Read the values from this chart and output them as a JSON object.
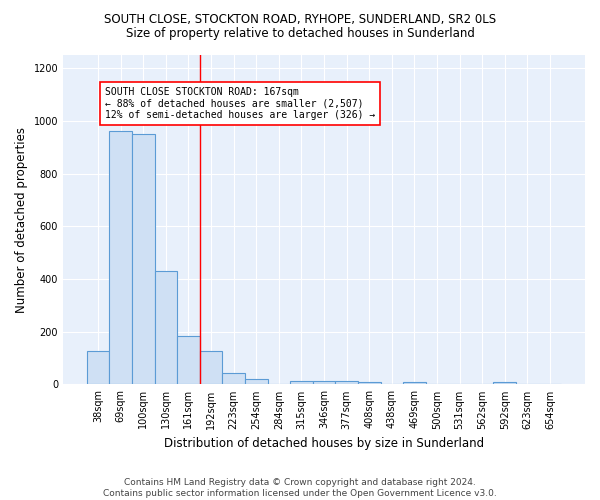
{
  "title": "SOUTH CLOSE, STOCKTON ROAD, RYHOPE, SUNDERLAND, SR2 0LS",
  "subtitle": "Size of property relative to detached houses in Sunderland",
  "xlabel": "Distribution of detached houses by size in Sunderland",
  "ylabel": "Number of detached properties",
  "bar_color": "#cfe0f4",
  "bar_edge_color": "#5b9bd5",
  "background_color": "#e8f0fb",
  "categories": [
    "38sqm",
    "69sqm",
    "100sqm",
    "130sqm",
    "161sqm",
    "192sqm",
    "223sqm",
    "254sqm",
    "284sqm",
    "315sqm",
    "346sqm",
    "377sqm",
    "408sqm",
    "438sqm",
    "469sqm",
    "500sqm",
    "531sqm",
    "562sqm",
    "592sqm",
    "623sqm",
    "654sqm"
  ],
  "values": [
    128,
    960,
    950,
    430,
    185,
    125,
    45,
    20,
    0,
    12,
    14,
    12,
    10,
    0,
    8,
    0,
    0,
    0,
    8,
    0,
    0
  ],
  "red_line_index": 4.5,
  "annotation_text": "SOUTH CLOSE STOCKTON ROAD: 167sqm\n← 88% of detached houses are smaller (2,507)\n12% of semi-detached houses are larger (326) →",
  "ylim": [
    0,
    1250
  ],
  "yticks": [
    0,
    200,
    400,
    600,
    800,
    1000,
    1200
  ],
  "footer_text": "Contains HM Land Registry data © Crown copyright and database right 2024.\nContains public sector information licensed under the Open Government Licence v3.0.",
  "title_fontsize": 8.5,
  "subtitle_fontsize": 8.5,
  "axis_label_fontsize": 8.5,
  "tick_fontsize": 7,
  "annotation_fontsize": 7,
  "footer_fontsize": 6.5
}
